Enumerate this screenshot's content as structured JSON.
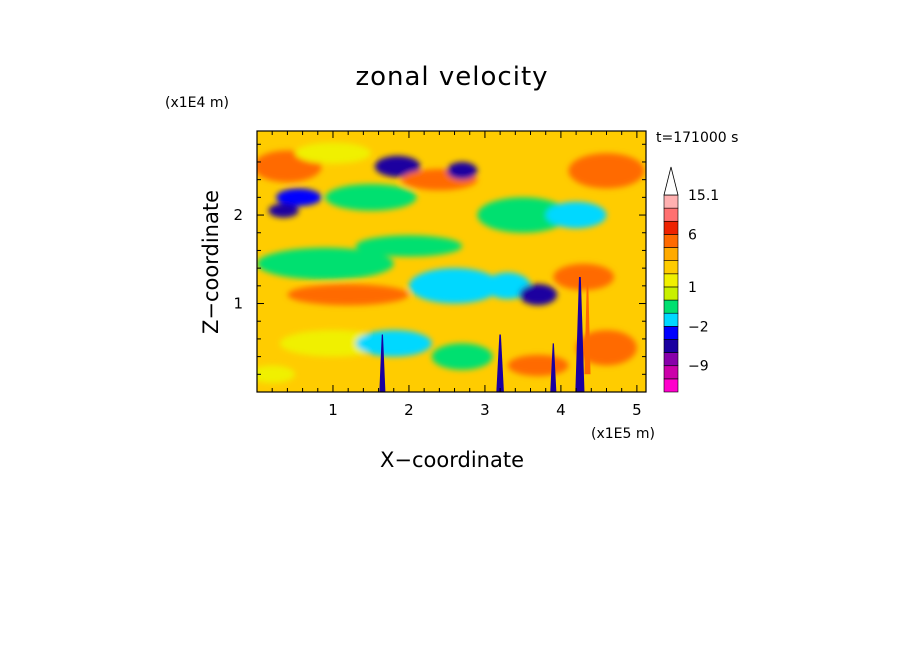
{
  "chart_data": {
    "type": "heatmap",
    "title": "zonal velocity",
    "xlabel": "X−coordinate",
    "ylabel": "Z−coordinate",
    "x_scale_label": "(x1E5 m)",
    "y_scale_label": "(x1E4 m)",
    "time_label": "t=171000 s",
    "xlim": [
      0,
      5.12
    ],
    "ylim": [
      0,
      2.95
    ],
    "x_ticks": [
      1,
      2,
      3,
      4,
      5
    ],
    "y_ticks": [
      1,
      2
    ],
    "grid": false,
    "colorbar": {
      "position": "right",
      "labels": [
        "15.1",
        "6",
        "1",
        "−2",
        "−9"
      ],
      "label_values": [
        15.1,
        6,
        1,
        -2,
        -9
      ],
      "levels": [
        -15,
        -12,
        -9,
        -6,
        -4,
        -2,
        -1,
        0,
        1,
        2,
        3,
        4,
        6,
        9,
        12,
        15.1
      ],
      "colors": [
        "#ff00cc",
        "#cc00aa",
        "#8800aa",
        "#1a00a0",
        "#0000ff",
        "#00d8ff",
        "#00e070",
        "#c8f000",
        "#f0f000",
        "#ffcc00",
        "#ffaa00",
        "#ff6a00",
        "#ee2200",
        "#ff7070",
        "#ffb0b0"
      ],
      "extend": "max"
    },
    "background_color": "#ffcc00",
    "blobs": [
      {
        "x": 0.4,
        "z": 2.55,
        "rx": 0.45,
        "rz": 0.18,
        "c": 11
      },
      {
        "x": 0.55,
        "z": 2.2,
        "rx": 0.3,
        "rz": 0.1,
        "c": 4
      },
      {
        "x": 0.35,
        "z": 2.05,
        "rx": 0.2,
        "rz": 0.08,
        "c": 3
      },
      {
        "x": 1.0,
        "z": 2.7,
        "rx": 0.5,
        "rz": 0.12,
        "c": 8
      },
      {
        "x": 1.85,
        "z": 2.55,
        "rx": 0.3,
        "rz": 0.12,
        "c": 3
      },
      {
        "x": 1.8,
        "z": 2.55,
        "rx": 0.2,
        "rz": 0.08,
        "c": 3
      },
      {
        "x": 2.4,
        "z": 2.4,
        "rx": 0.5,
        "rz": 0.12,
        "c": 11
      },
      {
        "x": 2.7,
        "z": 2.5,
        "rx": 0.2,
        "rz": 0.1,
        "c": 3
      },
      {
        "x": 1.5,
        "z": 2.2,
        "rx": 0.6,
        "rz": 0.15,
        "c": 6
      },
      {
        "x": 0.9,
        "z": 1.45,
        "rx": 0.9,
        "rz": 0.18,
        "c": 6
      },
      {
        "x": 1.2,
        "z": 1.1,
        "rx": 0.8,
        "rz": 0.12,
        "c": 11
      },
      {
        "x": 2.0,
        "z": 1.65,
        "rx": 0.7,
        "rz": 0.12,
        "c": 6
      },
      {
        "x": 2.6,
        "z": 1.2,
        "rx": 0.6,
        "rz": 0.2,
        "c": 5
      },
      {
        "x": 1.0,
        "z": 0.55,
        "rx": 0.7,
        "rz": 0.15,
        "c": 8
      },
      {
        "x": 1.8,
        "z": 0.55,
        "rx": 0.5,
        "rz": 0.15,
        "c": 5
      },
      {
        "x": 2.7,
        "z": 0.4,
        "rx": 0.4,
        "rz": 0.15,
        "c": 6
      },
      {
        "x": 3.5,
        "z": 2.0,
        "rx": 0.6,
        "rz": 0.2,
        "c": 6
      },
      {
        "x": 3.3,
        "z": 1.2,
        "rx": 0.3,
        "rz": 0.15,
        "c": 5
      },
      {
        "x": 3.7,
        "z": 1.1,
        "rx": 0.25,
        "rz": 0.12,
        "c": 3
      },
      {
        "x": 4.3,
        "z": 1.3,
        "rx": 0.4,
        "rz": 0.15,
        "c": 11
      },
      {
        "x": 4.6,
        "z": 2.5,
        "rx": 0.5,
        "rz": 0.2,
        "c": 11
      },
      {
        "x": 4.2,
        "z": 2.0,
        "rx": 0.4,
        "rz": 0.15,
        "c": 5
      },
      {
        "x": 3.7,
        "z": 0.3,
        "rx": 0.4,
        "rz": 0.12,
        "c": 11
      },
      {
        "x": 4.6,
        "z": 0.5,
        "rx": 0.4,
        "rz": 0.2,
        "c": 11
      },
      {
        "x": 0.2,
        "z": 0.2,
        "rx": 0.3,
        "rz": 0.1,
        "c": 8
      }
    ],
    "streaks": [
      {
        "x": 1.65,
        "z0": 0.0,
        "z1": 0.65,
        "w": 0.04,
        "c": 3
      },
      {
        "x": 3.2,
        "z0": 0.0,
        "z1": 0.65,
        "w": 0.05,
        "c": 3
      },
      {
        "x": 3.9,
        "z0": 0.0,
        "z1": 0.55,
        "w": 0.04,
        "c": 3
      },
      {
        "x": 4.25,
        "z0": 0.0,
        "z1": 1.3,
        "w": 0.06,
        "c": 3
      },
      {
        "x": 4.35,
        "z0": 0.2,
        "z1": 1.3,
        "w": 0.04,
        "c": 11
      }
    ]
  }
}
